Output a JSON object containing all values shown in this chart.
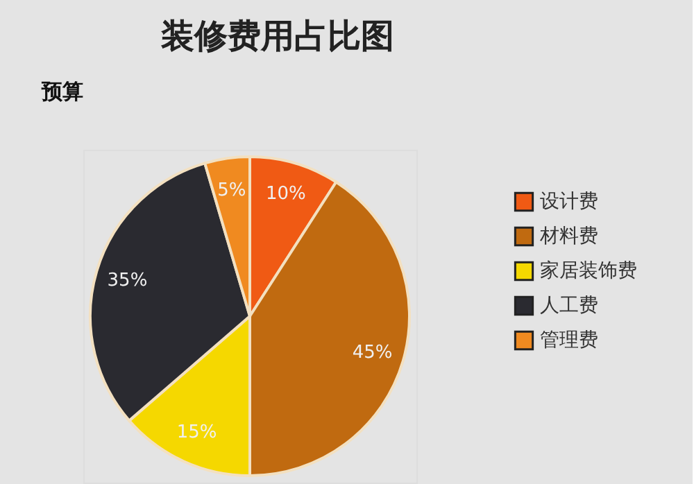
{
  "chart_data": {
    "type": "pie",
    "title": "装修费用占比图",
    "annotations": [
      "预算"
    ],
    "categories": [
      "设计费",
      "材料费",
      "家居装饰费",
      "人工费",
      "管理费"
    ],
    "values": [
      10,
      45,
      15,
      35,
      5
    ],
    "value_labels": [
      "10%",
      "45%",
      "15%",
      "35%",
      "5%"
    ],
    "colors": [
      "#f05a14",
      "#c06a10",
      "#f5d800",
      "#2a2a30",
      "#f08a20"
    ],
    "legend": "right"
  }
}
